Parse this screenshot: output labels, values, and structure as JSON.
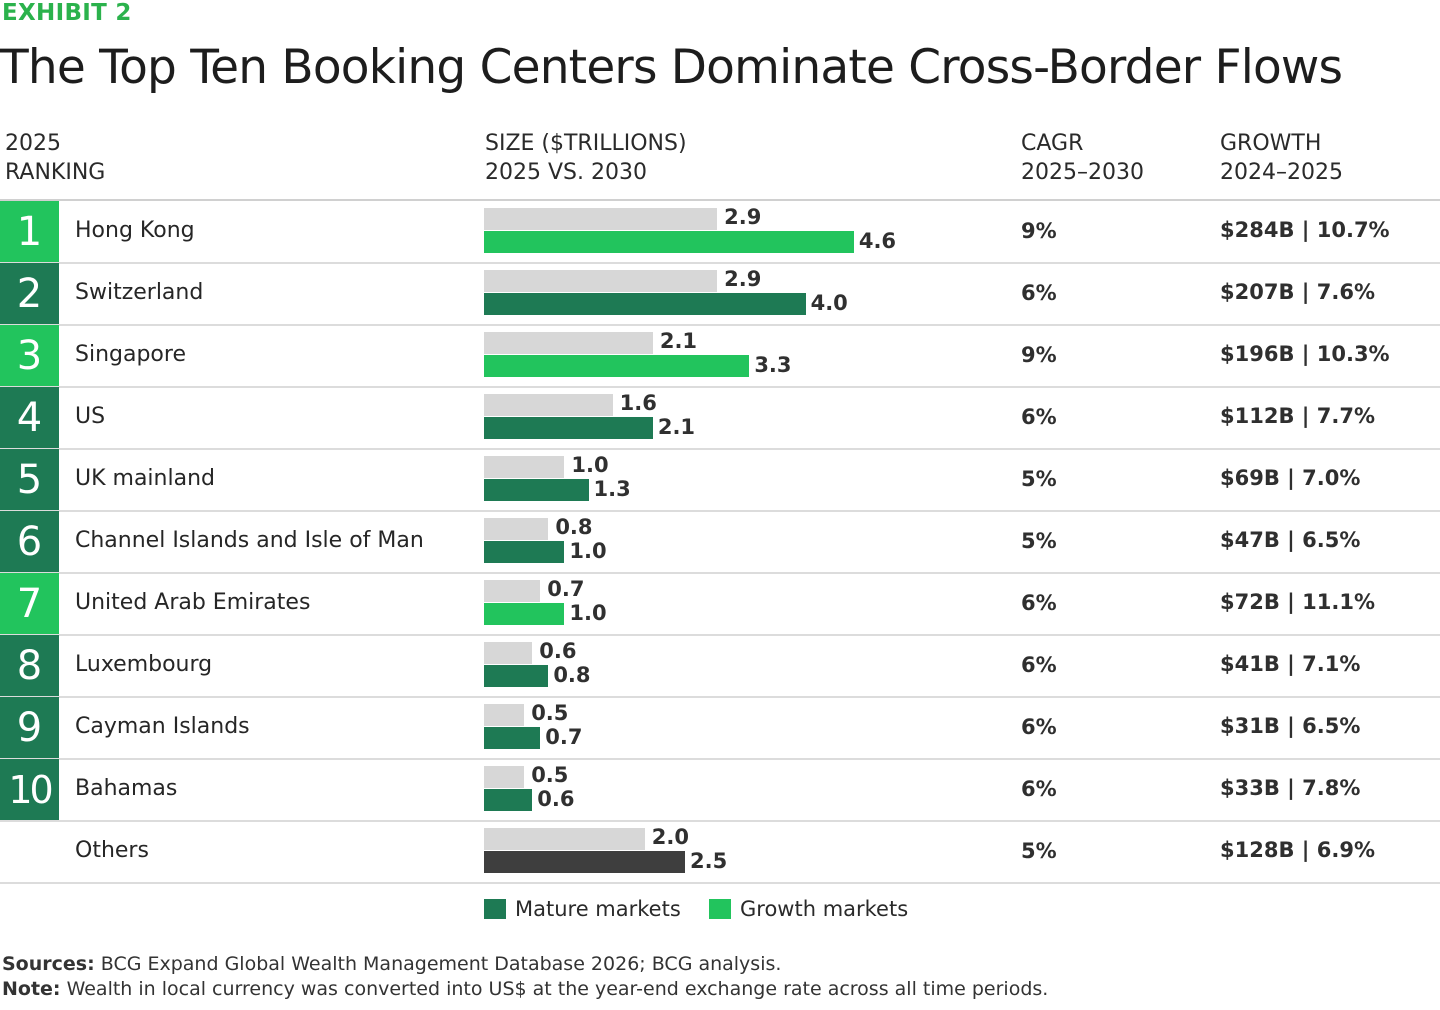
{
  "exhibit_label": "EXHIBIT 2",
  "title": "The Top Ten Booking Centers Dominate Cross-Border Flows",
  "headers": {
    "ranking": [
      "2025",
      "RANKING"
    ],
    "size": [
      "SIZE ($TRILLIONS)",
      "2025 VS. 2030"
    ],
    "cagr": [
      "CAGR",
      "2025–2030"
    ],
    "growth": [
      "GROWTH",
      "2024–2025"
    ]
  },
  "colors": {
    "mature": "#1e7a54",
    "growth": "#22c45d",
    "other": "#3e3e3e",
    "bar_2025": "#d7d7d7",
    "accent": "#2bb24c"
  },
  "legend": {
    "mature": "Mature markets",
    "growth": "Growth markets"
  },
  "chart_data": {
    "type": "bar",
    "orientation": "horizontal",
    "categories": [
      "Hong Kong",
      "Switzerland",
      "Singapore",
      "US",
      "UK mainland",
      "Channel Islands and Isle of Man",
      "United Arab Emirates",
      "Luxembourg",
      "Cayman Islands",
      "Bahamas",
      "Others"
    ],
    "ranks": [
      "1",
      "2",
      "3",
      "4",
      "5",
      "6",
      "7",
      "8",
      "9",
      "10",
      ""
    ],
    "market_type": [
      "growth",
      "mature",
      "growth",
      "mature",
      "mature",
      "mature",
      "growth",
      "mature",
      "mature",
      "mature",
      "other"
    ],
    "series": [
      {
        "values": [
          2.9,
          2.9,
          2.1,
          1.6,
          1.0,
          0.8,
          0.7,
          0.6,
          0.5,
          0.5,
          2.0
        ]
      },
      {
        "values": [
          4.6,
          4.0,
          3.3,
          2.1,
          1.3,
          1.0,
          1.0,
          0.8,
          0.7,
          0.6,
          2.5
        ]
      }
    ],
    "cagr": [
      "9%",
      "6%",
      "9%",
      "6%",
      "5%",
      "5%",
      "6%",
      "6%",
      "6%",
      "6%",
      "5%"
    ],
    "growth": [
      "$284B | 10.7%",
      "$207B | 7.6%",
      "$196B | 10.3%",
      "$112B | 7.7%",
      "$69B | 7.0%",
      "$47B | 6.5%",
      "$72B | 11.1%",
      "$41B | 7.1%",
      "$31B | 6.5%",
      "$33B | 7.8%",
      "$128B | 6.9%"
    ],
    "xlim": [
      0,
      4.6
    ],
    "grid": false,
    "legend_position": "bottom"
  },
  "footnotes": {
    "sources_label": "Sources:",
    "sources_text": " BCG Expand Global Wealth Management Database 2026; BCG analysis.",
    "note_label": "Note:",
    "note_text": " Wealth in local currency was converted into US$ at the year-end exchange rate across all time periods."
  }
}
